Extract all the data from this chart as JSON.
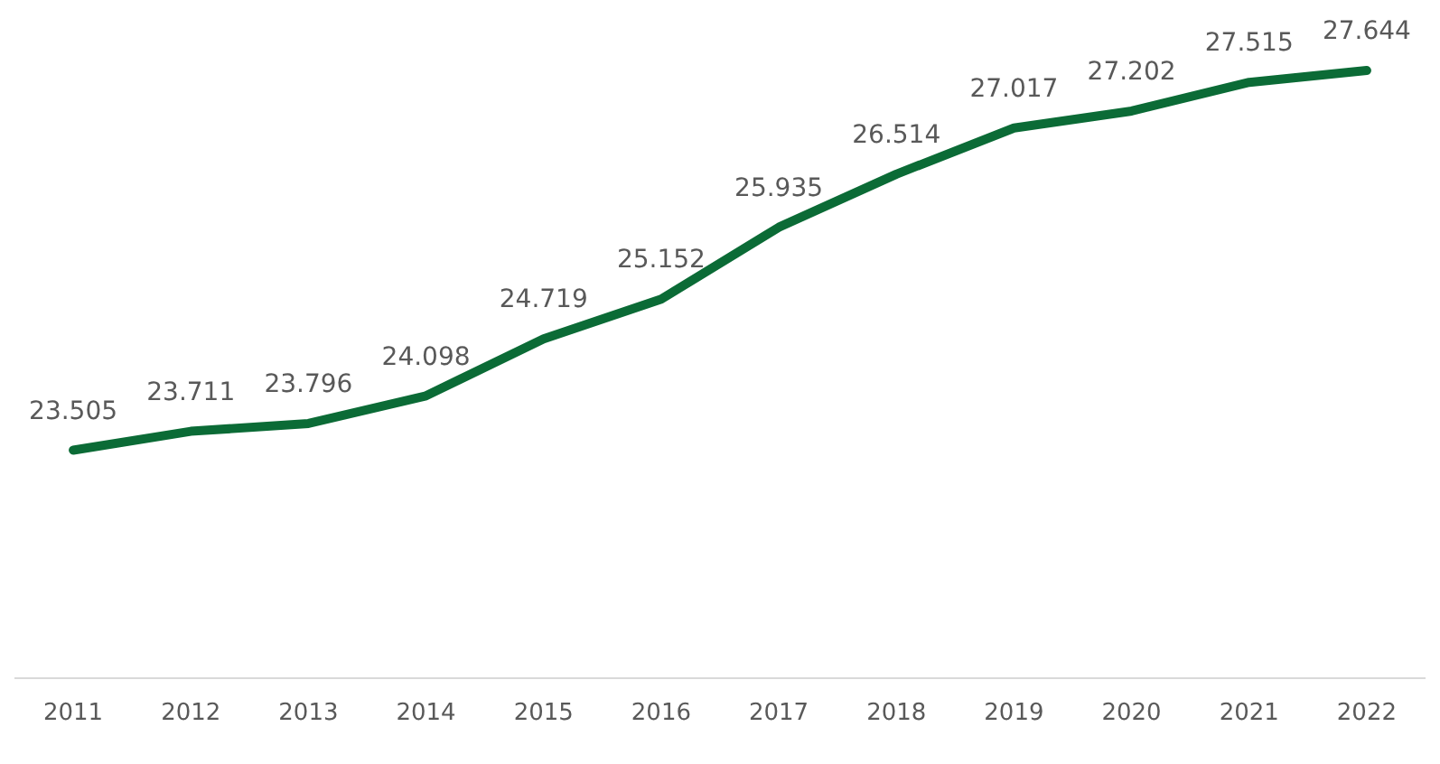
{
  "chart_data": {
    "type": "line",
    "categories": [
      "2011",
      "2012",
      "2013",
      "2014",
      "2015",
      "2016",
      "2017",
      "2018",
      "2019",
      "2020",
      "2021",
      "2022"
    ],
    "series": [
      {
        "color": "#0b6b36",
        "values": [
          23.505,
          23.711,
          23.796,
          24.098,
          24.719,
          25.152,
          25.935,
          26.514,
          27.017,
          27.202,
          27.515,
          27.644
        ]
      }
    ],
    "data_labels": true,
    "grid": false,
    "legend": false,
    "marker": "none",
    "line_style": "solid"
  }
}
